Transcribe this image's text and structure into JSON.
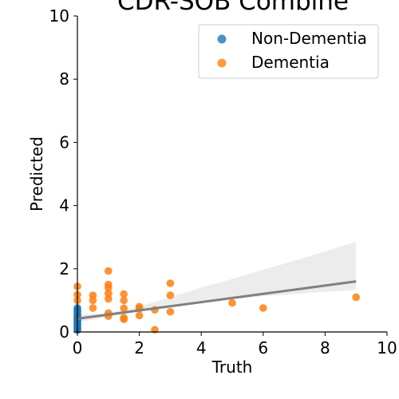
{
  "chart_data": {
    "type": "scatter",
    "title": "CDR-SOB Combine",
    "xlabel": "Truth",
    "ylabel": "Predicted",
    "xlim": [
      0,
      10
    ],
    "ylim": [
      0,
      10
    ],
    "xticks": [
      "0",
      "2",
      "4",
      "6",
      "8",
      "10"
    ],
    "yticks": [
      "0",
      "2",
      "4",
      "6",
      "8",
      "10"
    ],
    "grid": false,
    "legend_position": "top-right",
    "series": [
      {
        "name": "Non-Dementia",
        "color": "#1f77b4",
        "points": [
          [
            0,
            0.76
          ],
          [
            0,
            0.7
          ],
          [
            0,
            0.64
          ],
          [
            0,
            0.57
          ],
          [
            0,
            0.5
          ],
          [
            0,
            0.45
          ],
          [
            0,
            0.4
          ],
          [
            0,
            0.35
          ],
          [
            0,
            0.3
          ],
          [
            0,
            0.26
          ],
          [
            0,
            0.22
          ],
          [
            0,
            0.18
          ],
          [
            0,
            0.14
          ],
          [
            0,
            0.1
          ],
          [
            0,
            0.06
          ]
        ]
      },
      {
        "name": "Dementia",
        "color": "#ff7f0e",
        "points": [
          [
            0,
            1.44
          ],
          [
            0,
            1.18
          ],
          [
            0,
            1.0
          ],
          [
            0.5,
            1.16
          ],
          [
            0.5,
            1.0
          ],
          [
            0.5,
            0.76
          ],
          [
            1,
            1.93
          ],
          [
            1,
            1.5
          ],
          [
            1,
            1.4
          ],
          [
            1,
            1.22
          ],
          [
            1,
            1.05
          ],
          [
            1,
            0.6
          ],
          [
            1,
            0.5
          ],
          [
            1.5,
            1.2
          ],
          [
            1.5,
            1.0
          ],
          [
            1.5,
            0.75
          ],
          [
            1.5,
            0.45
          ],
          [
            1.5,
            0.4
          ],
          [
            2,
            0.8
          ],
          [
            2,
            0.74
          ],
          [
            2,
            0.52
          ],
          [
            2.5,
            0.7
          ],
          [
            2.5,
            0.07
          ],
          [
            3,
            1.54
          ],
          [
            3,
            1.16
          ],
          [
            3,
            0.64
          ],
          [
            5,
            0.92
          ],
          [
            6,
            0.76
          ],
          [
            9,
            1.1
          ]
        ]
      }
    ],
    "regression": {
      "color": "#808080",
      "line": [
        [
          0,
          0.42
        ],
        [
          9,
          1.6
        ]
      ],
      "ci_upper": [
        [
          0,
          0.55
        ],
        [
          1,
          0.6
        ],
        [
          2,
          0.8
        ],
        [
          3,
          1.1
        ],
        [
          4,
          1.4
        ],
        [
          5,
          1.68
        ],
        [
          6,
          1.97
        ],
        [
          7,
          2.25
        ],
        [
          8,
          2.55
        ],
        [
          9,
          2.85
        ]
      ],
      "ci_lower": [
        [
          0,
          0.3
        ],
        [
          1,
          0.48
        ],
        [
          2,
          0.66
        ],
        [
          3,
          0.8
        ],
        [
          4,
          0.92
        ],
        [
          5,
          1.04
        ],
        [
          6,
          1.13
        ],
        [
          7,
          1.2
        ],
        [
          8,
          1.27
        ],
        [
          9,
          1.33
        ]
      ]
    }
  }
}
